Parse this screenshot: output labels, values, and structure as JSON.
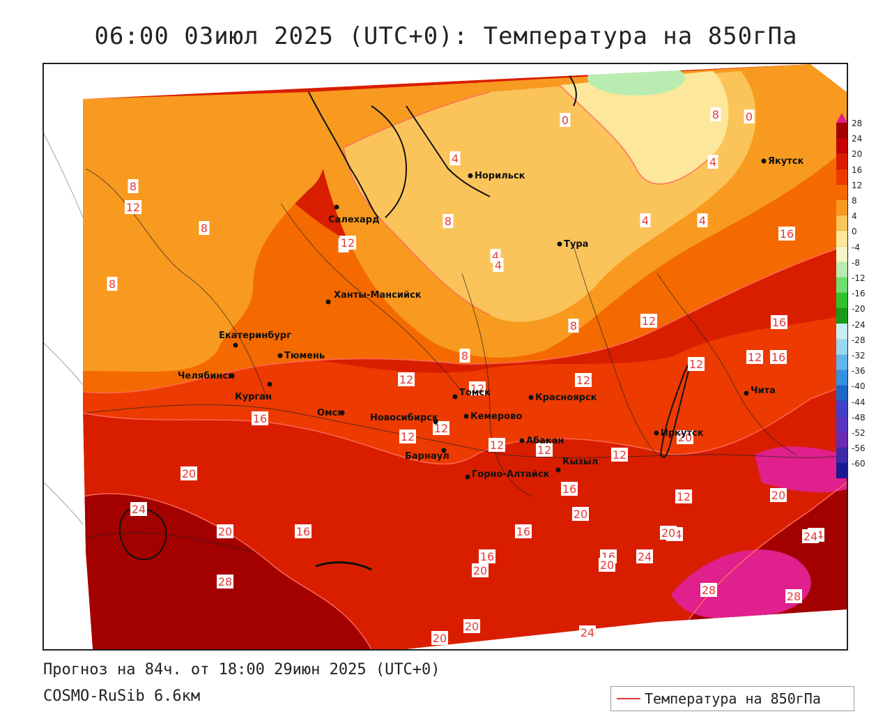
{
  "header": {
    "title": "06:00 03июл 2025 (UTC+0): Температура на 850гПа"
  },
  "footer": {
    "forecast": "Прогноз на 84ч. от 18:00 29июн 2025 (UTC+0)",
    "model": "COSMO-RuSib 6.6км"
  },
  "legend": {
    "label": "Температура на 850гПа",
    "line_color": "#e53935"
  },
  "colorbar": {
    "labels": [
      "28",
      "24",
      "20",
      "16",
      "12",
      "8",
      "4",
      "0",
      "-4",
      "-8",
      "-12",
      "-16",
      "-20",
      "-24",
      "-28",
      "-32",
      "-36",
      "-40",
      "-44",
      "-48",
      "-52",
      "-56",
      "-60"
    ],
    "colors": [
      "#a30000",
      "#c40000",
      "#d91e00",
      "#ed3a00",
      "#f56a00",
      "#f89a20",
      "#fbc45a",
      "#fde79a",
      "#f4f7c8",
      "#b8ecb0",
      "#6fdc6f",
      "#2ec22e",
      "#199a19",
      "#c8f0f4",
      "#9ad8f0",
      "#62b4ec",
      "#3590e0",
      "#1f66c8",
      "#4040c8",
      "#5a36c0",
      "#6a2bb0",
      "#3a2aa8",
      "#1a1a90"
    ],
    "top_color": "#e0208c"
  },
  "cities": [
    {
      "name": "Норильск"
    },
    {
      "name": "Якутск"
    },
    {
      "name": "Салехард"
    },
    {
      "name": "Тура"
    },
    {
      "name": "Ханты-Мансийск"
    },
    {
      "name": "Екатеринбург"
    },
    {
      "name": "Тюмень"
    },
    {
      "name": "Челябинск"
    },
    {
      "name": "Курган"
    },
    {
      "name": "Омск"
    },
    {
      "name": "Новосибирск"
    },
    {
      "name": "Томск"
    },
    {
      "name": "Кемерово"
    },
    {
      "name": "Красноярск"
    },
    {
      "name": "Барнаул"
    },
    {
      "name": "Абакан"
    },
    {
      "name": "Горно-Алтайск"
    },
    {
      "name": "Кызыл"
    },
    {
      "name": "Иркутск"
    },
    {
      "name": "Чита"
    }
  ],
  "contour_labels": [
    "0",
    "4",
    "8",
    "0",
    "4",
    "8",
    "4",
    "4",
    "4",
    "4",
    "8",
    "12",
    "8",
    "8",
    "8",
    "8",
    "12",
    "8",
    "12",
    "16",
    "16",
    "12",
    "12",
    "12",
    "12",
    "12",
    "12",
    "12",
    "12",
    "12",
    "12",
    "16",
    "16",
    "20",
    "20",
    "24",
    "24",
    "24",
    "28",
    "20",
    "16",
    "16",
    "16",
    "16",
    "20",
    "20",
    "24",
    "20",
    "20",
    "20",
    "20",
    "24",
    "28",
    "28",
    "12",
    "16",
    "24",
    "20"
  ]
}
